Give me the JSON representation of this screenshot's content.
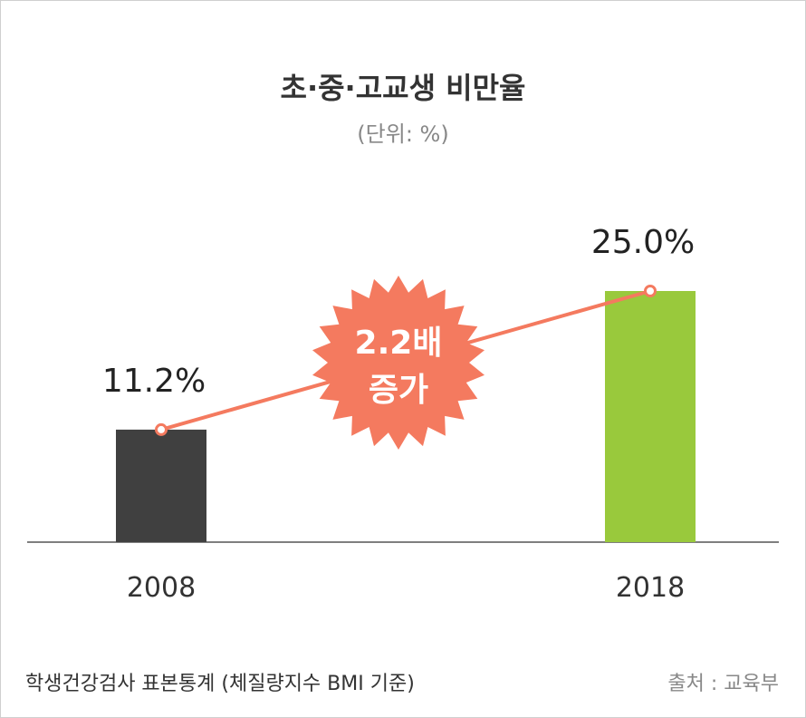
{
  "chart_data": {
    "type": "bar",
    "title": "초·중·고교생 비만율",
    "subtitle": "(단위: %)",
    "categories": [
      "2008",
      "2018"
    ],
    "values": [
      11.2,
      25.0
    ],
    "value_labels": [
      "11.2%",
      "25.0%"
    ],
    "bar_colors": [
      "#404040",
      "#99c93c"
    ],
    "trend_line_color": "#f47a5f",
    "badge": {
      "lines": [
        "2.2배",
        "증가"
      ],
      "color": "#f47a5f"
    },
    "ylim": [
      0,
      30
    ],
    "grid": false
  },
  "footer": {
    "note": "학생건강검사 표본통계 (체질량지수 BMI 기준)",
    "source": "출처 : 교육부"
  }
}
